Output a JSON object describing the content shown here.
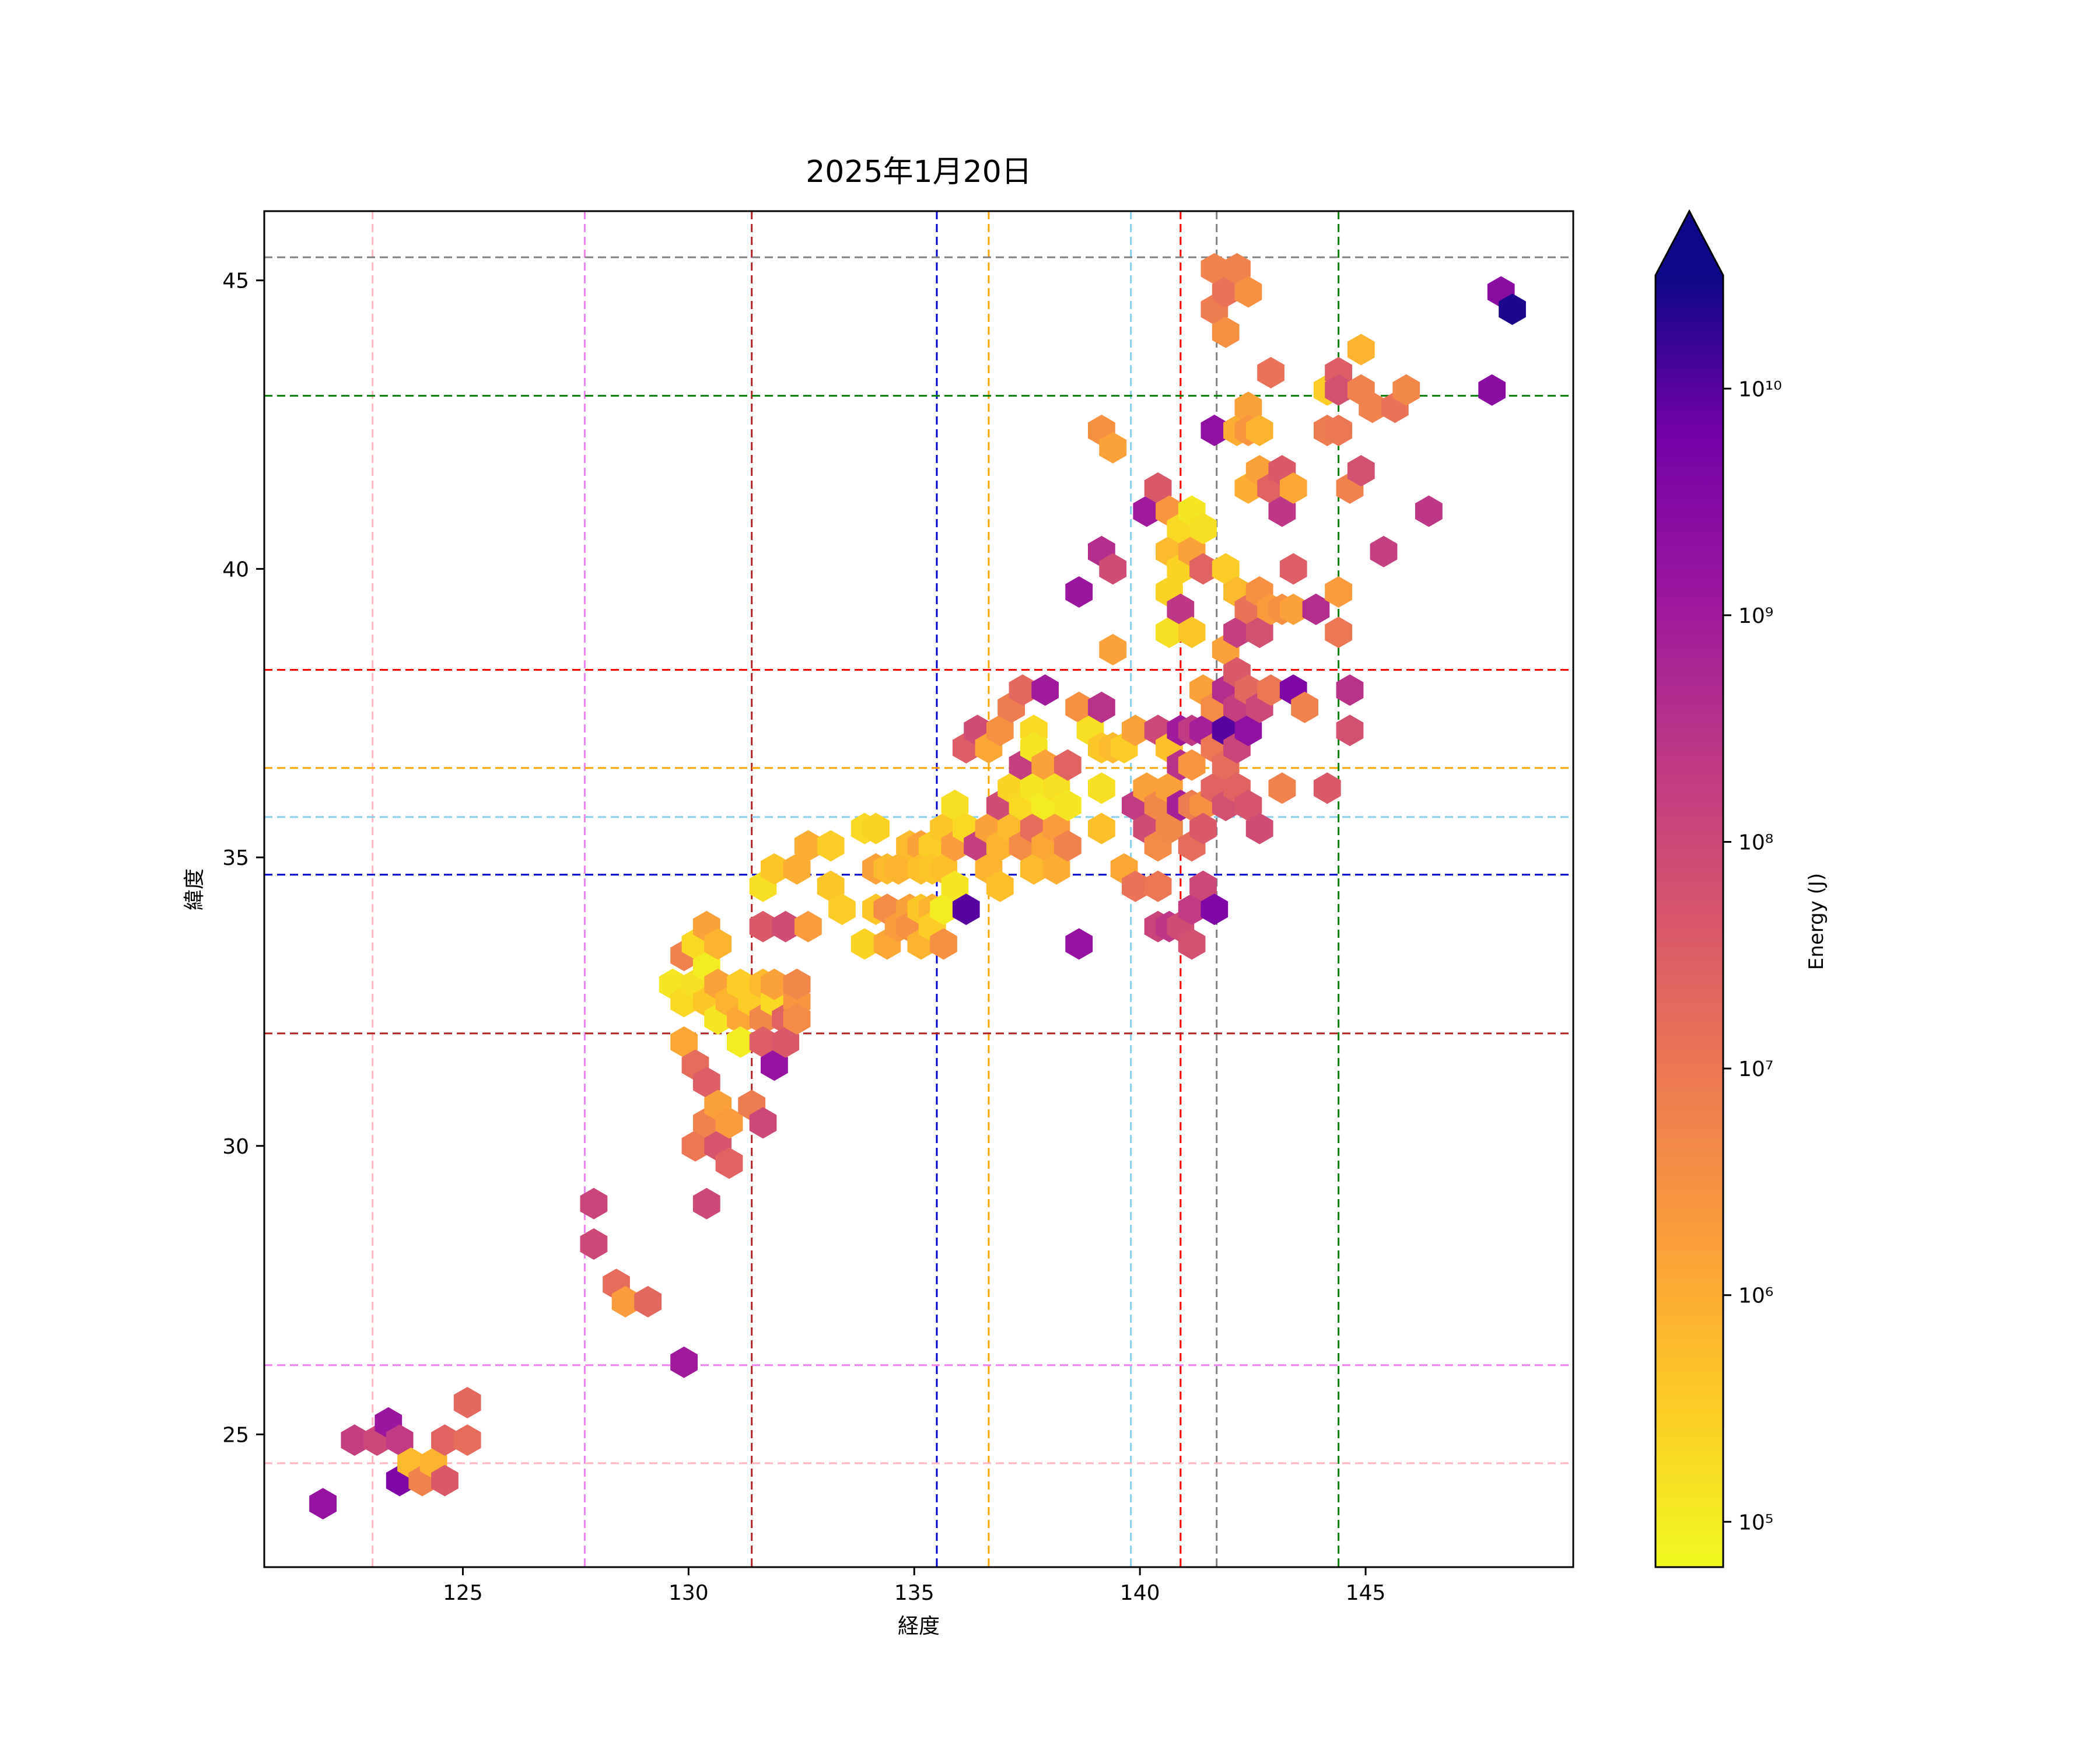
{
  "chart_data": {
    "type": "hexbin",
    "title": "2025年1月20日",
    "xlabel": "経度",
    "ylabel": "緯度",
    "xlim": [
      120.6,
      149.6
    ],
    "ylim": [
      22.7,
      46.2
    ],
    "x_ticks": [
      125,
      130,
      135,
      140,
      145
    ],
    "y_ticks": [
      25,
      30,
      35,
      40,
      45
    ],
    "x_tick_labels": [
      "125",
      "130",
      "135",
      "140",
      "145"
    ],
    "y_tick_labels": [
      "25",
      "30",
      "35",
      "40",
      "45"
    ],
    "colorbar": {
      "label": "Energy (J)",
      "scale": "log",
      "colormap": "plasma_r",
      "vmin_exp": 4.8,
      "vmax_exp": 10.5,
      "extend": "max",
      "ticks": [
        {
          "exp": 5,
          "label": "10⁵"
        },
        {
          "exp": 6,
          "label": "10⁶"
        },
        {
          "exp": 7,
          "label": "10⁷"
        },
        {
          "exp": 8,
          "label": "10⁸"
        },
        {
          "exp": 9,
          "label": "10⁹"
        },
        {
          "exp": 10,
          "label": "10¹⁰"
        }
      ]
    },
    "reference_lines": {
      "vertical": [
        {
          "x": 123.0,
          "color": "#ffb6c1"
        },
        {
          "x": 127.7,
          "color": "#ee82ee"
        },
        {
          "x": 131.4,
          "color": "#b22222"
        },
        {
          "x": 135.5,
          "color": "#0000cd"
        },
        {
          "x": 136.65,
          "color": "#ffa500"
        },
        {
          "x": 139.8,
          "color": "#87ceeb"
        },
        {
          "x": 140.9,
          "color": "#ff0000"
        },
        {
          "x": 141.7,
          "color": "#808080"
        },
        {
          "x": 144.4,
          "color": "#008000"
        }
      ],
      "horizontal": [
        {
          "y": 45.4,
          "color": "#808080"
        },
        {
          "y": 43.0,
          "color": "#008000"
        },
        {
          "y": 38.25,
          "color": "#ff0000"
        },
        {
          "y": 36.55,
          "color": "#ffa500"
        },
        {
          "y": 35.7,
          "color": "#87ceeb"
        },
        {
          "y": 34.7,
          "color": "#0000cd"
        },
        {
          "y": 31.95,
          "color": "#b22222"
        },
        {
          "y": 26.2,
          "color": "#ee82ee"
        },
        {
          "y": 24.5,
          "color": "#ffb6c1"
        }
      ]
    },
    "hex_cells": [
      [
        121.9,
        23.8,
        9.2
      ],
      [
        122.6,
        24.9,
        8.2
      ],
      [
        123.1,
        24.9,
        8.0
      ],
      [
        123.35,
        25.2,
        9.1
      ],
      [
        123.6,
        24.2,
        9.6
      ],
      [
        123.6,
        24.9,
        8.3
      ],
      [
        123.85,
        24.5,
        5.8
      ],
      [
        124.1,
        24.2,
        6.8
      ],
      [
        124.35,
        24.5,
        5.9
      ],
      [
        124.6,
        24.2,
        7.6
      ],
      [
        124.6,
        24.9,
        7.4
      ],
      [
        125.1,
        24.9,
        7.2
      ],
      [
        125.1,
        25.55,
        7.3
      ],
      [
        127.9,
        29.0,
        8.1
      ],
      [
        127.9,
        28.3,
        8.0
      ],
      [
        128.4,
        27.6,
        7.2
      ],
      [
        128.6,
        27.3,
        6.3
      ],
      [
        129.1,
        27.3,
        7.3
      ],
      [
        129.9,
        26.25,
        9.0
      ],
      [
        129.65,
        32.8,
        5.1
      ],
      [
        129.9,
        33.3,
        6.8
      ],
      [
        129.9,
        32.5,
        5.3
      ],
      [
        129.9,
        31.8,
        6.1
      ],
      [
        130.15,
        33.5,
        5.3
      ],
      [
        130.15,
        32.8,
        5.2
      ],
      [
        130.15,
        31.4,
        7.2
      ],
      [
        130.15,
        30.0,
        7.0
      ],
      [
        130.4,
        33.8,
        6.2
      ],
      [
        130.4,
        33.1,
        5.0
      ],
      [
        130.4,
        32.5,
        5.6
      ],
      [
        130.4,
        31.1,
        7.5
      ],
      [
        130.4,
        30.4,
        6.8
      ],
      [
        130.4,
        29.0,
        8.0
      ],
      [
        130.65,
        33.5,
        5.9
      ],
      [
        130.65,
        32.8,
        6.2
      ],
      [
        130.65,
        32.2,
        5.1
      ],
      [
        130.65,
        30.7,
        6.2
      ],
      [
        130.65,
        30.0,
        7.7
      ],
      [
        130.9,
        32.5,
        5.9
      ],
      [
        130.9,
        30.4,
        6.3
      ],
      [
        130.9,
        29.7,
        7.4
      ],
      [
        131.15,
        32.8,
        5.5
      ],
      [
        131.15,
        32.2,
        6.1
      ],
      [
        131.15,
        31.8,
        5.0
      ],
      [
        131.4,
        32.5,
        5.5
      ],
      [
        131.4,
        30.7,
        6.9
      ],
      [
        131.65,
        32.8,
        5.8
      ],
      [
        131.65,
        32.2,
        6.7
      ],
      [
        131.65,
        31.8,
        7.5
      ],
      [
        131.65,
        30.4,
        8.0
      ],
      [
        131.65,
        33.8,
        7.6
      ],
      [
        131.65,
        34.5,
        5.2
      ],
      [
        131.9,
        32.5,
        5.3
      ],
      [
        131.9,
        31.4,
        9.2
      ],
      [
        131.9,
        32.8,
        6.2
      ],
      [
        131.9,
        34.8,
        5.6
      ],
      [
        132.15,
        32.2,
        7.4
      ],
      [
        132.15,
        31.8,
        7.6
      ],
      [
        132.15,
        33.8,
        7.9
      ],
      [
        132.4,
        32.5,
        6.4
      ],
      [
        132.4,
        32.2,
        6.6
      ],
      [
        132.4,
        32.8,
        6.7
      ],
      [
        132.4,
        34.8,
        6.0
      ],
      [
        132.65,
        33.8,
        6.3
      ],
      [
        132.65,
        35.2,
        6.0
      ],
      [
        133.15,
        35.2,
        5.5
      ],
      [
        133.15,
        34.5,
        5.6
      ],
      [
        133.4,
        34.1,
        5.5
      ],
      [
        133.9,
        35.5,
        5.3
      ],
      [
        133.9,
        33.5,
        5.4
      ],
      [
        134.15,
        35.5,
        5.4
      ],
      [
        134.15,
        34.8,
        6.2
      ],
      [
        134.15,
        34.1,
        5.6
      ],
      [
        134.4,
        34.8,
        5.8
      ],
      [
        134.4,
        34.1,
        6.6
      ],
      [
        134.4,
        33.5,
        6.1
      ],
      [
        134.65,
        33.8,
        6.3
      ],
      [
        134.65,
        34.8,
        5.9
      ],
      [
        134.9,
        35.2,
        5.8
      ],
      [
        134.9,
        34.1,
        6.2
      ],
      [
        134.9,
        33.8,
        6.5
      ],
      [
        135.15,
        35.2,
        6.2
      ],
      [
        135.15,
        34.8,
        5.7
      ],
      [
        135.15,
        34.1,
        5.6
      ],
      [
        135.15,
        33.5,
        5.9
      ],
      [
        135.4,
        35.2,
        5.5
      ],
      [
        135.4,
        34.8,
        5.6
      ],
      [
        135.4,
        34.1,
        5.9
      ],
      [
        135.4,
        33.8,
        5.5
      ],
      [
        135.65,
        35.5,
        5.6
      ],
      [
        135.65,
        34.8,
        5.7
      ],
      [
        135.65,
        34.1,
        5.0
      ],
      [
        135.65,
        33.5,
        6.5
      ],
      [
        135.9,
        35.9,
        5.2
      ],
      [
        135.9,
        35.2,
        6.3
      ],
      [
        135.9,
        34.5,
        5.1
      ],
      [
        136.15,
        35.5,
        5.3
      ],
      [
        136.15,
        36.9,
        7.5
      ],
      [
        136.15,
        34.1,
        10.0
      ],
      [
        136.4,
        37.2,
        7.9
      ],
      [
        136.4,
        35.2,
        8.2
      ],
      [
        136.65,
        36.9,
        6.1
      ],
      [
        136.65,
        35.5,
        6.2
      ],
      [
        136.65,
        34.8,
        5.9
      ],
      [
        136.9,
        37.2,
        6.5
      ],
      [
        136.9,
        35.9,
        7.9
      ],
      [
        136.9,
        35.2,
        5.9
      ],
      [
        136.9,
        34.5,
        5.7
      ],
      [
        137.15,
        37.6,
        6.9
      ],
      [
        137.15,
        36.2,
        5.4
      ],
      [
        137.15,
        35.5,
        5.8
      ],
      [
        137.4,
        37.9,
        7.3
      ],
      [
        137.4,
        36.6,
        8.2
      ],
      [
        137.4,
        35.9,
        5.3
      ],
      [
        137.4,
        35.2,
        6.6
      ],
      [
        137.65,
        37.2,
        5.3
      ],
      [
        137.65,
        36.9,
        5.1
      ],
      [
        137.65,
        36.2,
        5.1
      ],
      [
        137.65,
        35.5,
        7.2
      ],
      [
        137.65,
        34.8,
        5.8
      ],
      [
        137.9,
        37.9,
        9.0
      ],
      [
        137.9,
        36.6,
        6.2
      ],
      [
        137.9,
        35.9,
        5.0
      ],
      [
        137.9,
        35.2,
        6.1
      ],
      [
        138.15,
        36.2,
        5.2
      ],
      [
        138.15,
        35.5,
        6.3
      ],
      [
        138.15,
        34.8,
        6.0
      ],
      [
        138.4,
        36.6,
        7.4
      ],
      [
        138.4,
        35.9,
        5.1
      ],
      [
        138.4,
        35.2,
        6.8
      ],
      [
        138.65,
        39.6,
        9.1
      ],
      [
        138.65,
        37.6,
        6.5
      ],
      [
        138.65,
        33.5,
        9.2
      ],
      [
        138.9,
        37.2,
        5.2
      ],
      [
        139.15,
        42.4,
        6.5
      ],
      [
        139.15,
        40.3,
        8.6
      ],
      [
        139.15,
        37.6,
        8.5
      ],
      [
        139.15,
        36.9,
        5.6
      ],
      [
        139.15,
        36.2,
        5.2
      ],
      [
        139.15,
        35.5,
        5.7
      ],
      [
        139.4,
        42.1,
        6.2
      ],
      [
        139.4,
        40.0,
        7.9
      ],
      [
        139.4,
        38.6,
        6.2
      ],
      [
        139.4,
        36.9,
        5.8
      ],
      [
        139.65,
        36.9,
        5.5
      ],
      [
        139.65,
        34.8,
        6.1
      ],
      [
        139.9,
        37.2,
        6.2
      ],
      [
        139.9,
        35.9,
        8.3
      ],
      [
        139.9,
        34.5,
        7.1
      ],
      [
        140.15,
        41.0,
        9.0
      ],
      [
        140.15,
        36.2,
        6.2
      ],
      [
        140.15,
        35.5,
        7.9
      ],
      [
        140.4,
        41.4,
        7.6
      ],
      [
        140.4,
        37.2,
        8.0
      ],
      [
        140.4,
        35.9,
        6.7
      ],
      [
        140.4,
        35.2,
        6.6
      ],
      [
        140.4,
        34.5,
        7.0
      ],
      [
        140.4,
        33.8,
        8.1
      ],
      [
        140.65,
        41.0,
        6.4
      ],
      [
        140.65,
        40.3,
        5.8
      ],
      [
        140.65,
        39.6,
        5.4
      ],
      [
        140.65,
        38.9,
        5.2
      ],
      [
        140.65,
        36.9,
        5.7
      ],
      [
        140.65,
        36.2,
        6.2
      ],
      [
        140.65,
        35.5,
        6.7
      ],
      [
        140.65,
        33.8,
        8.4
      ],
      [
        140.9,
        40.7,
        5.3
      ],
      [
        140.9,
        40.0,
        5.4
      ],
      [
        140.9,
        39.3,
        8.4
      ],
      [
        140.9,
        37.2,
        9.0
      ],
      [
        140.9,
        36.6,
        8.5
      ],
      [
        140.9,
        35.9,
        8.9
      ],
      [
        140.9,
        33.8,
        7.9
      ],
      [
        141.15,
        41.0,
        5.1
      ],
      [
        141.15,
        40.3,
        6.2
      ],
      [
        141.15,
        38.9,
        5.6
      ],
      [
        141.15,
        37.2,
        8.3
      ],
      [
        141.15,
        36.6,
        6.4
      ],
      [
        141.15,
        35.9,
        6.9
      ],
      [
        141.15,
        35.2,
        7.2
      ],
      [
        141.15,
        34.1,
        8.3
      ],
      [
        141.15,
        33.5,
        7.8
      ],
      [
        141.4,
        40.7,
        5.2
      ],
      [
        141.4,
        40.0,
        7.4
      ],
      [
        141.4,
        37.9,
        6.2
      ],
      [
        141.4,
        37.2,
        8.9
      ],
      [
        141.4,
        35.9,
        6.5
      ],
      [
        141.4,
        35.5,
        7.6
      ],
      [
        141.4,
        34.5,
        8.0
      ],
      [
        141.65,
        45.2,
        6.8
      ],
      [
        141.65,
        44.5,
        6.9
      ],
      [
        141.65,
        42.4,
        9.3
      ],
      [
        141.65,
        37.6,
        6.6
      ],
      [
        141.65,
        36.9,
        7.0
      ],
      [
        141.65,
        36.2,
        7.4
      ],
      [
        141.65,
        34.1,
        9.6
      ],
      [
        141.9,
        44.8,
        7.1
      ],
      [
        141.9,
        44.1,
        6.5
      ],
      [
        141.9,
        40.0,
        5.5
      ],
      [
        141.9,
        38.6,
        6.2
      ],
      [
        141.9,
        37.9,
        8.6
      ],
      [
        141.9,
        37.2,
        10.0
      ],
      [
        141.9,
        36.6,
        7.2
      ],
      [
        141.9,
        35.9,
        7.8
      ],
      [
        142.15,
        45.2,
        6.8
      ],
      [
        142.15,
        42.4,
        6.0
      ],
      [
        142.15,
        39.6,
        5.8
      ],
      [
        142.15,
        38.9,
        8.2
      ],
      [
        142.15,
        38.2,
        7.6
      ],
      [
        142.15,
        37.6,
        8.2
      ],
      [
        142.15,
        36.9,
        8.1
      ],
      [
        142.15,
        36.2,
        7.4
      ],
      [
        142.4,
        44.8,
        6.5
      ],
      [
        142.4,
        42.8,
        6.2
      ],
      [
        142.4,
        42.4,
        6.4
      ],
      [
        142.4,
        41.4,
        6.0
      ],
      [
        142.4,
        39.3,
        7.1
      ],
      [
        142.4,
        37.9,
        7.3
      ],
      [
        142.4,
        37.2,
        9.3
      ],
      [
        142.4,
        35.9,
        7.7
      ],
      [
        142.65,
        42.4,
        5.9
      ],
      [
        142.65,
        41.7,
        6.2
      ],
      [
        142.65,
        39.6,
        6.5
      ],
      [
        142.65,
        38.9,
        7.8
      ],
      [
        142.65,
        37.6,
        8.0
      ],
      [
        142.65,
        35.5,
        7.9
      ],
      [
        142.9,
        43.4,
        7.1
      ],
      [
        142.9,
        41.4,
        7.4
      ],
      [
        142.9,
        39.3,
        6.3
      ],
      [
        142.9,
        37.9,
        7.0
      ],
      [
        143.15,
        41.7,
        7.6
      ],
      [
        143.15,
        41.0,
        8.4
      ],
      [
        143.15,
        39.3,
        6.5
      ],
      [
        143.15,
        36.2,
        6.8
      ],
      [
        143.4,
        41.4,
        6.1
      ],
      [
        143.4,
        40.0,
        7.5
      ],
      [
        143.4,
        39.3,
        6.2
      ],
      [
        143.4,
        37.9,
        9.6
      ],
      [
        143.65,
        37.6,
        6.8
      ],
      [
        143.9,
        39.3,
        8.6
      ],
      [
        144.15,
        43.1,
        5.5
      ],
      [
        144.15,
        42.4,
        6.9
      ],
      [
        144.15,
        36.2,
        7.6
      ],
      [
        144.4,
        43.4,
        7.5
      ],
      [
        144.4,
        43.1,
        7.8
      ],
      [
        144.4,
        42.4,
        7.0
      ],
      [
        144.4,
        39.6,
        6.3
      ],
      [
        144.4,
        38.9,
        7.0
      ],
      [
        144.65,
        41.4,
        6.8
      ],
      [
        144.65,
        37.9,
        8.5
      ],
      [
        144.65,
        37.2,
        7.8
      ],
      [
        144.9,
        43.8,
        5.9
      ],
      [
        144.9,
        43.1,
        6.8
      ],
      [
        144.9,
        41.7,
        7.8
      ],
      [
        145.15,
        42.8,
        6.8
      ],
      [
        145.4,
        40.3,
        8.2
      ],
      [
        145.65,
        42.8,
        7.1
      ],
      [
        145.9,
        43.1,
        6.7
      ],
      [
        146.4,
        41.0,
        8.4
      ],
      [
        147.8,
        43.1,
        9.4
      ],
      [
        148.0,
        44.8,
        9.4
      ],
      [
        148.25,
        44.5,
        10.4
      ]
    ]
  }
}
